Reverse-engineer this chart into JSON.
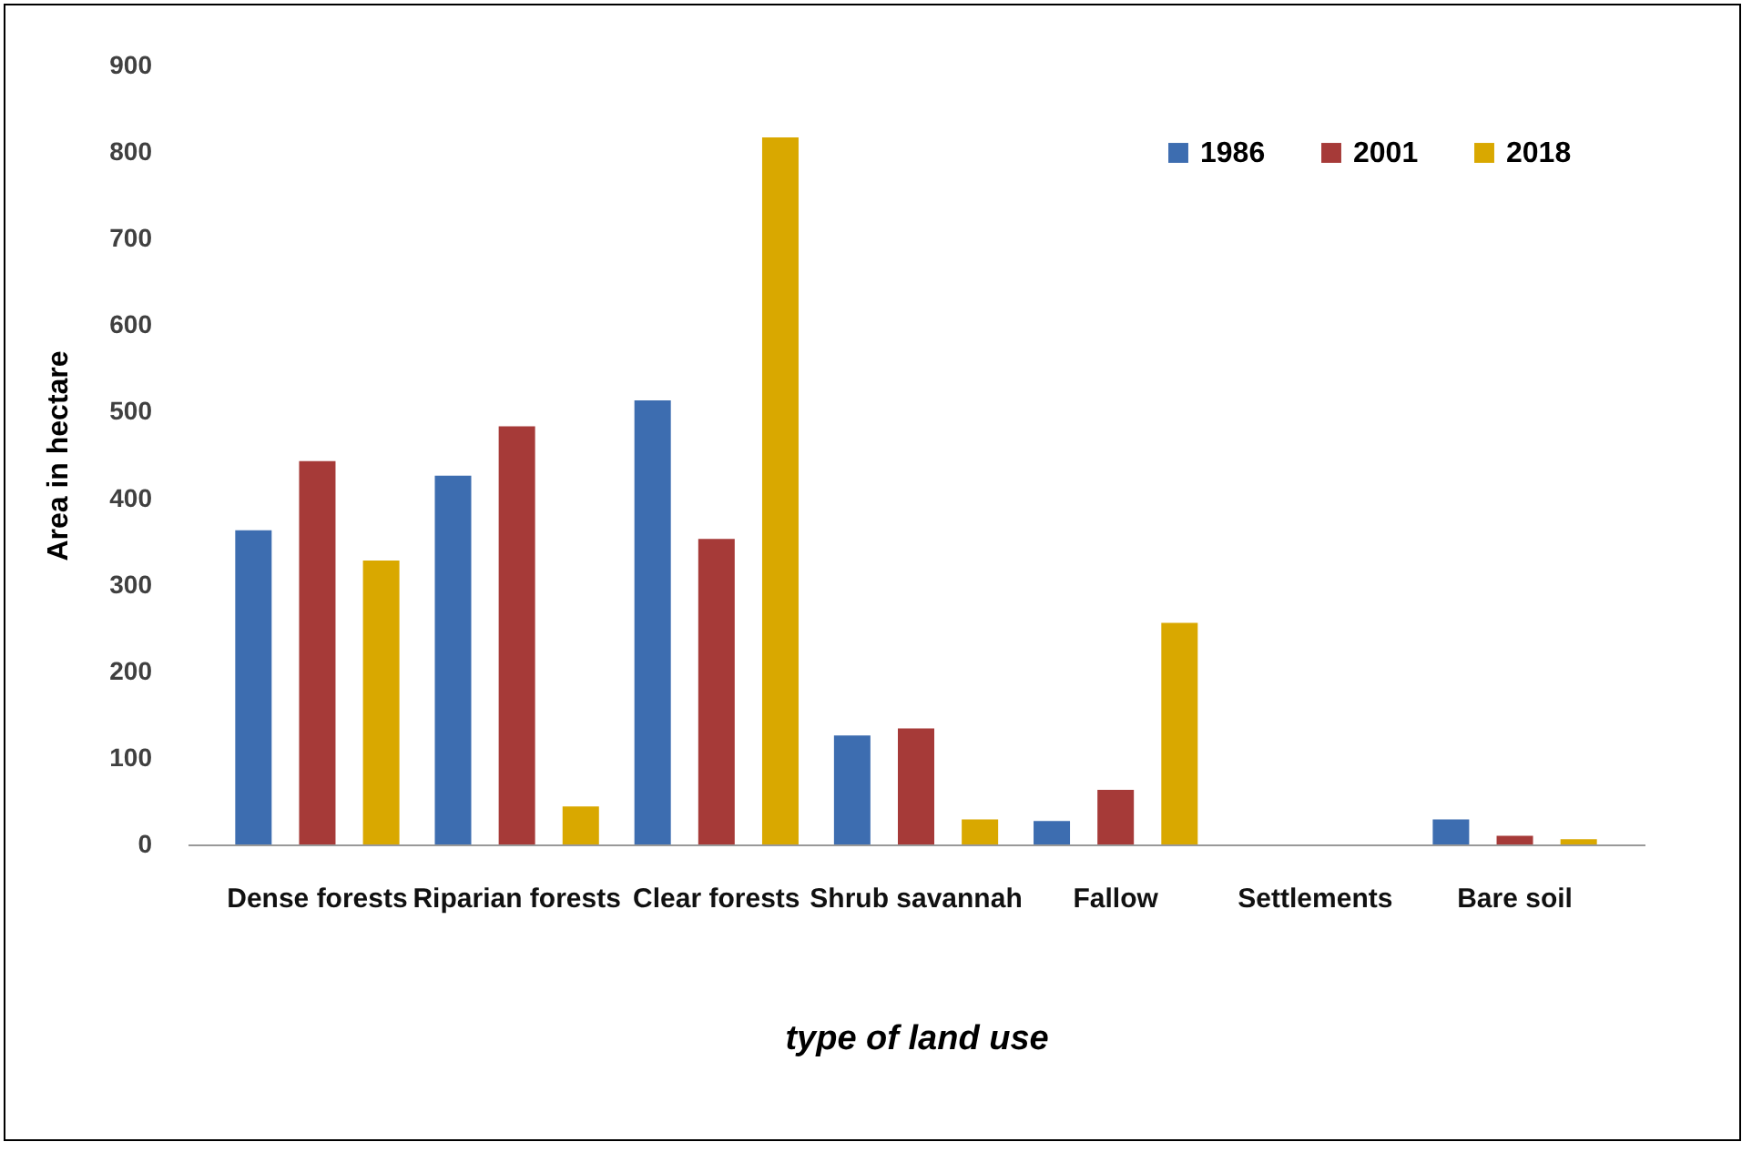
{
  "chart_data": {
    "type": "bar",
    "xlabel": "type of land use",
    "ylabel": "Area in hectare",
    "categories": [
      "Dense forests",
      "Riparian forests",
      "Clear forests",
      "Shrub savannah",
      "Fallow",
      "Settlements",
      "Bare soil"
    ],
    "series": [
      {
        "name": "1986",
        "color": "#3d6db0",
        "values": [
          363,
          426,
          513,
          126,
          27,
          0,
          29
        ]
      },
      {
        "name": "2001",
        "color": "#a63a38",
        "values": [
          443,
          483,
          353,
          134,
          63,
          0,
          10
        ]
      },
      {
        "name": "2018",
        "color": "#d9a800",
        "values": [
          328,
          44,
          817,
          29,
          256,
          0,
          6
        ]
      }
    ],
    "ylim": [
      0,
      900
    ],
    "yticks": [
      0,
      100,
      200,
      300,
      400,
      500,
      600,
      700,
      800,
      900
    ],
    "grid": false,
    "legend": "top right"
  }
}
